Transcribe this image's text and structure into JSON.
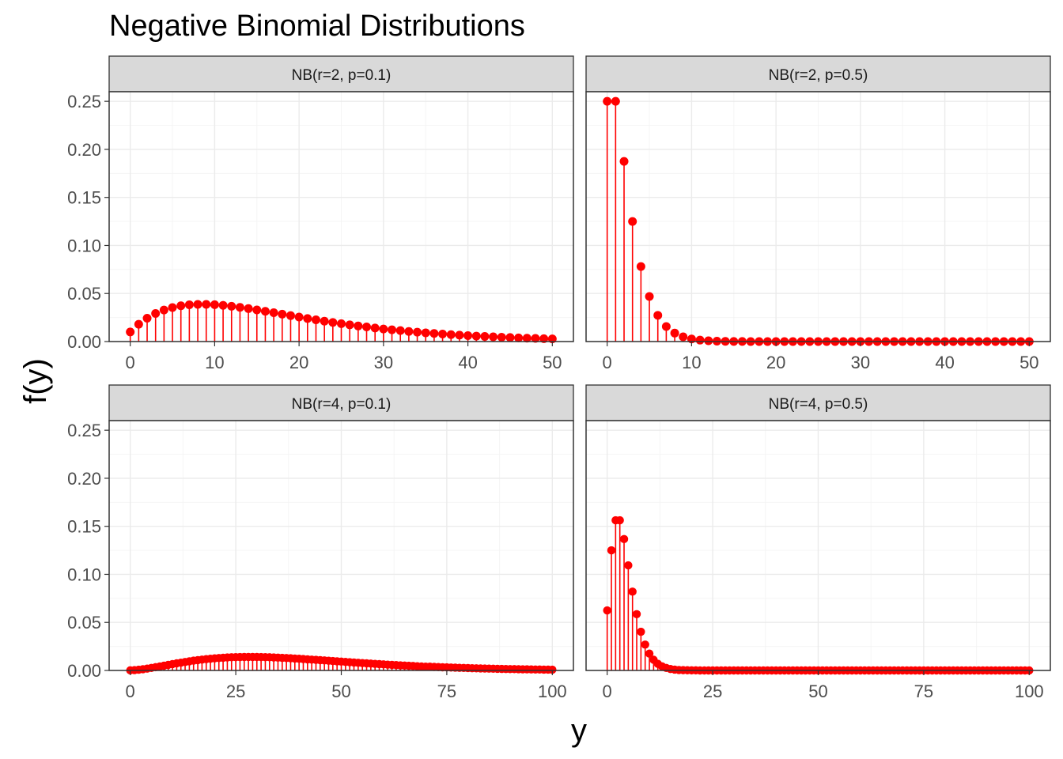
{
  "chart_data": {
    "type": "scatter",
    "title": "Negative Binomial Distributions",
    "xlabel": "y",
    "ylabel": "f(y)",
    "grid": true,
    "marker_color": "#ff0000",
    "y_axis_shared": {
      "ylim": [
        0,
        0.26
      ],
      "ticks": [
        0.0,
        0.05,
        0.1,
        0.15,
        0.2,
        0.25
      ],
      "tick_labels": [
        "0.00",
        "0.05",
        "0.10",
        "0.15",
        "0.20",
        "0.25"
      ]
    },
    "panels": [
      {
        "label": "NB(r=2, p=0.1)",
        "row": 0,
        "col": 0,
        "r": 2,
        "p": 0.1,
        "x_range": [
          0,
          50
        ],
        "xlim": [
          -2.5,
          52.5
        ],
        "x_ticks": [
          0,
          10,
          20,
          30,
          40,
          50
        ],
        "x_tick_labels": [
          "0",
          "10",
          "20",
          "30",
          "40",
          "50"
        ],
        "series": [
          {
            "x": [
              0,
              1,
              2,
              3,
              4,
              5,
              6,
              7,
              8,
              9,
              10,
              11,
              12,
              13,
              14,
              15,
              16,
              17,
              18,
              19,
              20,
              21,
              22,
              23,
              24,
              25,
              26,
              27,
              28,
              29,
              30,
              31,
              32,
              33,
              34,
              35,
              36,
              37,
              38,
              39,
              40,
              41,
              42,
              43,
              44,
              45,
              46,
              47,
              48,
              49,
              50
            ],
            "values": [
              0.01,
              0.018,
              0.0243,
              0.0292,
              0.0328,
              0.0354,
              0.0372,
              0.0383,
              0.0387,
              0.0387,
              0.0384,
              0.0377,
              0.0367,
              0.0356,
              0.0343,
              0.0329,
              0.0315,
              0.03,
              0.0285,
              0.027,
              0.0255,
              0.024,
              0.0226,
              0.0212,
              0.0199,
              0.0186,
              0.0174,
              0.0162,
              0.0152,
              0.0141,
              0.0131,
              0.0122,
              0.0114,
              0.0105,
              0.0098,
              0.0091,
              0.0084,
              0.0078,
              0.0072,
              0.0067,
              0.0062,
              0.0057,
              0.0053,
              0.0049,
              0.0045,
              0.0042,
              0.0038,
              0.0035,
              0.0033,
              0.003,
              0.0028
            ]
          }
        ]
      },
      {
        "label": "NB(r=2, p=0.5)",
        "row": 0,
        "col": 1,
        "r": 2,
        "p": 0.5,
        "x_range": [
          0,
          50
        ],
        "xlim": [
          -2.5,
          52.5
        ],
        "x_ticks": [
          0,
          10,
          20,
          30,
          40,
          50
        ],
        "x_tick_labels": [
          "0",
          "10",
          "20",
          "30",
          "40",
          "50"
        ],
        "series": [
          {
            "x": [
              0,
              1,
              2,
              3,
              4,
              5,
              6,
              7,
              8,
              9,
              10,
              11,
              12,
              13,
              14,
              15,
              16,
              17,
              18,
              19,
              20,
              21,
              22,
              23,
              24,
              25,
              26,
              27,
              28,
              29,
              30,
              31,
              32,
              33,
              34,
              35,
              36,
              37,
              38,
              39,
              40,
              41,
              42,
              43,
              44,
              45,
              46,
              47,
              48,
              49,
              50
            ],
            "values": [
              0.25,
              0.25,
              0.1875,
              0.125,
              0.0781,
              0.0469,
              0.0273,
              0.0156,
              0.0088,
              0.0049,
              0.0027,
              0.0015,
              0.0008,
              0.0004,
              0.0002,
              0.0001,
              0.0001,
              0,
              0,
              0,
              0,
              0,
              0,
              0,
              0,
              0,
              0,
              0,
              0,
              0,
              0,
              0,
              0,
              0,
              0,
              0,
              0,
              0,
              0,
              0,
              0,
              0,
              0,
              0,
              0,
              0,
              0,
              0,
              0,
              0,
              0
            ]
          }
        ]
      },
      {
        "label": "NB(r=4, p=0.1)",
        "row": 1,
        "col": 0,
        "r": 4,
        "p": 0.1,
        "x_range": [
          0,
          100
        ],
        "xlim": [
          -5,
          105
        ],
        "x_ticks": [
          0,
          25,
          50,
          75,
          100
        ],
        "x_tick_labels": [
          "0",
          "25",
          "50",
          "75",
          "100"
        ],
        "series": [
          {
            "x": [
              0,
              1,
              2,
              3,
              4,
              5,
              6,
              7,
              8,
              9,
              10,
              11,
              12,
              13,
              14,
              15,
              16,
              17,
              18,
              19,
              20,
              21,
              22,
              23,
              24,
              25,
              26,
              27,
              28,
              29,
              30,
              31,
              32,
              33,
              34,
              35,
              36,
              37,
              38,
              39,
              40,
              41,
              42,
              43,
              44,
              45,
              46,
              47,
              48,
              49,
              50,
              51,
              52,
              53,
              54,
              55,
              56,
              57,
              58,
              59,
              60,
              61,
              62,
              63,
              64,
              65,
              66,
              67,
              68,
              69,
              70,
              71,
              72,
              73,
              74,
              75,
              76,
              77,
              78,
              79,
              80,
              81,
              82,
              83,
              84,
              85,
              86,
              87,
              88,
              89,
              90,
              91,
              92,
              93,
              94,
              95,
              96,
              97,
              98,
              99,
              100
            ],
            "values": [
              0.0001,
              0.0004,
              0.0008,
              0.0013,
              0.0019,
              0.0026,
              0.0034,
              0.0042,
              0.005,
              0.0058,
              0.0066,
              0.0074,
              0.0081,
              0.0088,
              0.0095,
              0.0102,
              0.0107,
              0.0113,
              0.0118,
              0.0122,
              0.0126,
              0.0129,
              0.0132,
              0.0135,
              0.0137,
              0.0138,
              0.0139,
              0.014,
              0.014,
              0.014,
              0.014,
              0.0139,
              0.0138,
              0.0137,
              0.0135,
              0.0133,
              0.0131,
              0.0129,
              0.0127,
              0.0124,
              0.0122,
              0.0119,
              0.0116,
              0.0113,
              0.011,
              0.0107,
              0.0104,
              0.0101,
              0.0098,
              0.0095,
              0.0092,
              0.0089,
              0.0086,
              0.0083,
              0.008,
              0.0077,
              0.0074,
              0.0071,
              0.0068,
              0.0066,
              0.0063,
              0.006,
              0.0058,
              0.0056,
              0.0053,
              0.0051,
              0.0049,
              0.0047,
              0.0044,
              0.0042,
              0.004,
              0.0039,
              0.0037,
              0.0035,
              0.0033,
              0.0032,
              0.003,
              0.0029,
              0.0027,
              0.0026,
              0.0025,
              0.0023,
              0.0022,
              0.0021,
              0.002,
              0.0019,
              0.0018,
              0.0017,
              0.0016,
              0.0015,
              0.0014,
              0.0014,
              0.0013,
              0.0012,
              0.0012,
              0.0011,
              0.001,
              0.001,
              0.0009,
              0.0009,
              0.0008
            ]
          }
        ]
      },
      {
        "label": "NB(r=4, p=0.5)",
        "row": 1,
        "col": 1,
        "r": 4,
        "p": 0.5,
        "x_range": [
          0,
          100
        ],
        "xlim": [
          -5,
          105
        ],
        "x_ticks": [
          0,
          25,
          50,
          75,
          100
        ],
        "x_tick_labels": [
          "0",
          "25",
          "50",
          "75",
          "100"
        ],
        "series": [
          {
            "x": [
              0,
              1,
              2,
              3,
              4,
              5,
              6,
              7,
              8,
              9,
              10,
              11,
              12,
              13,
              14,
              15,
              16,
              17,
              18,
              19,
              20,
              21,
              22,
              23,
              24,
              25,
              26,
              27,
              28,
              29,
              30,
              31,
              32,
              33,
              34,
              35,
              36,
              37,
              38,
              39,
              40,
              41,
              42,
              43,
              44,
              45,
              46,
              47,
              48,
              49,
              50,
              51,
              52,
              53,
              54,
              55,
              56,
              57,
              58,
              59,
              60,
              61,
              62,
              63,
              64,
              65,
              66,
              67,
              68,
              69,
              70,
              71,
              72,
              73,
              74,
              75,
              76,
              77,
              78,
              79,
              80,
              81,
              82,
              83,
              84,
              85,
              86,
              87,
              88,
              89,
              90,
              91,
              92,
              93,
              94,
              95,
              96,
              97,
              98,
              99,
              100
            ],
            "values": [
              0.0625,
              0.125,
              0.1563,
              0.1563,
              0.1367,
              0.1094,
              0.082,
              0.0586,
              0.0403,
              0.0269,
              0.0175,
              0.0111,
              0.0069,
              0.0043,
              0.0026,
              0.0015,
              0.0009,
              0.0005,
              0.0003,
              0.0002,
              0.0001,
              0.0001,
              0,
              0,
              0,
              0,
              0,
              0,
              0,
              0,
              0,
              0,
              0,
              0,
              0,
              0,
              0,
              0,
              0,
              0,
              0,
              0,
              0,
              0,
              0,
              0,
              0,
              0,
              0,
              0,
              0,
              0,
              0,
              0,
              0,
              0,
              0,
              0,
              0,
              0,
              0,
              0,
              0,
              0,
              0,
              0,
              0,
              0,
              0,
              0,
              0,
              0,
              0,
              0,
              0,
              0,
              0,
              0,
              0,
              0,
              0,
              0,
              0,
              0,
              0,
              0,
              0,
              0,
              0,
              0,
              0,
              0,
              0,
              0,
              0,
              0,
              0,
              0,
              0,
              0,
              0
            ]
          }
        ]
      }
    ]
  }
}
